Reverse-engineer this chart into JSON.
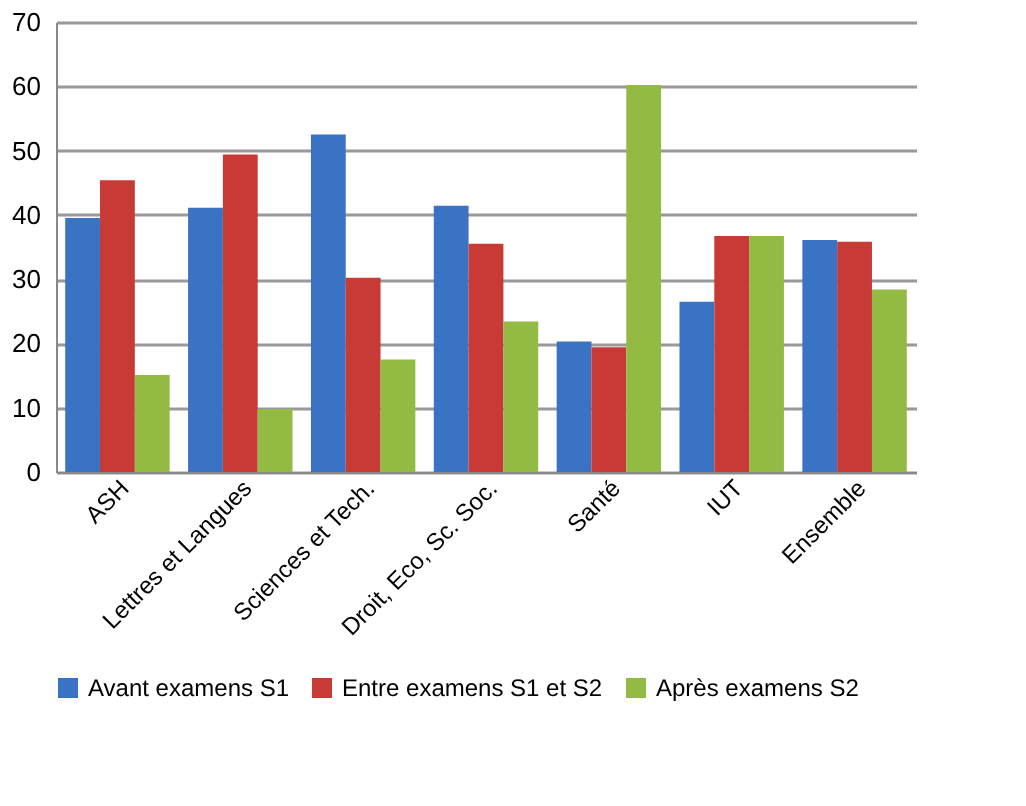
{
  "chart_data": {
    "type": "bar",
    "categories": [
      "ASH",
      "Lettres et Langues",
      "Sciences et Tech.",
      "Droit, Eco, Sc. Soc.",
      "Santé",
      "IUT",
      "Ensemble"
    ],
    "series": [
      {
        "name": "Avant examens S1",
        "color": "#3a72c4",
        "values": [
          39.5,
          41.1,
          52.5,
          41.4,
          20.3,
          26.5,
          36.1
        ]
      },
      {
        "name": "Entre examens S1 et S2",
        "color": "#c83a36",
        "values": [
          45.4,
          49.4,
          30.2,
          35.5,
          19.4,
          36.7,
          35.8
        ]
      },
      {
        "name": "Après examens S2",
        "color": "#93bb43",
        "values": [
          15.1,
          9.8,
          17.5,
          23.4,
          60.2,
          36.7,
          28.4
        ]
      }
    ],
    "ylim": [
      0,
      70
    ],
    "yticks": [
      0,
      10,
      20,
      30,
      40,
      50,
      60,
      70
    ],
    "grid": "y",
    "legend": "bottom"
  }
}
